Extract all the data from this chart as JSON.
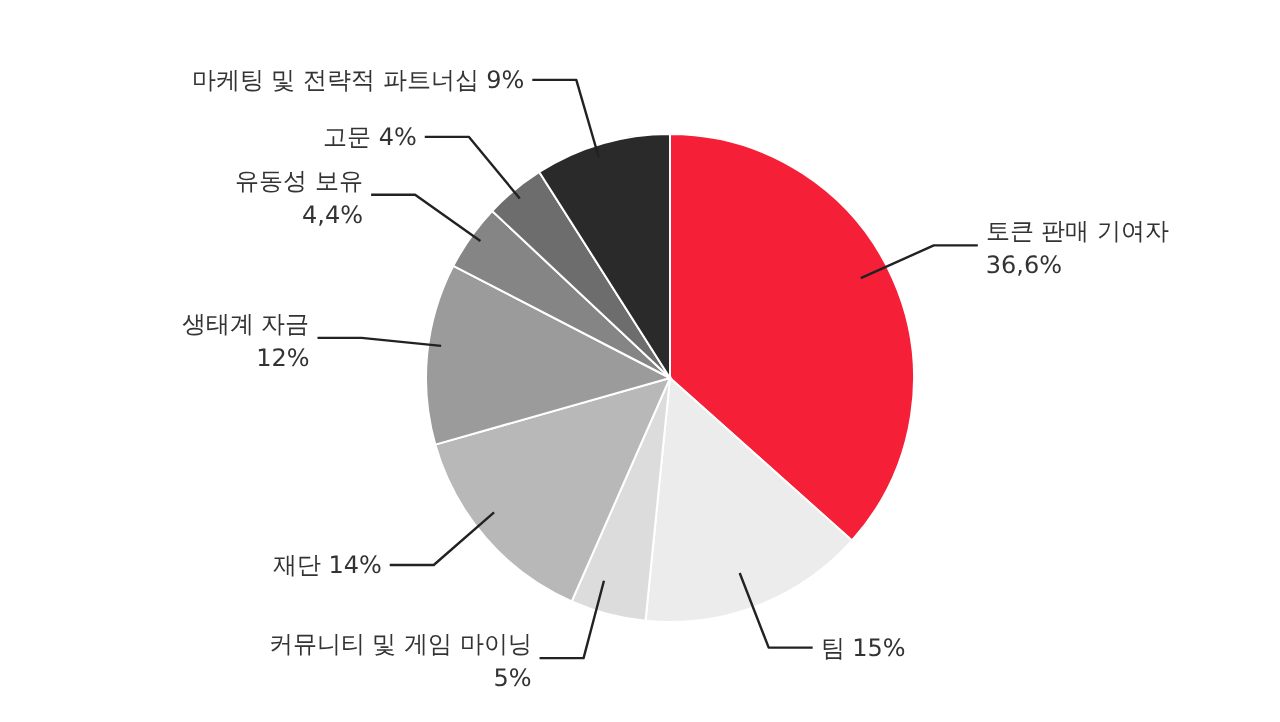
{
  "chart_data": {
    "type": "pie",
    "categories": [
      "토큰 판매 기여자",
      "팀",
      "커뮤니티 및 게임 마이닝",
      "재단",
      "생태계 자금",
      "유동성 보유",
      "고문",
      "마케팅 및 전략적 파트너십"
    ],
    "values": [
      36.6,
      15,
      5,
      14,
      12,
      4.4,
      4,
      9
    ],
    "value_labels": [
      "36,6%",
      "15%",
      "5%",
      "14%",
      "12%",
      "4,4%",
      "4%",
      "9%"
    ],
    "colors": [
      "#f51f37",
      "#ececec",
      "#dcdcdc",
      "#b8b8b8",
      "#9b9b9b",
      "#858585",
      "#6d6d6d",
      "#2a2a2a"
    ],
    "legend": false
  }
}
